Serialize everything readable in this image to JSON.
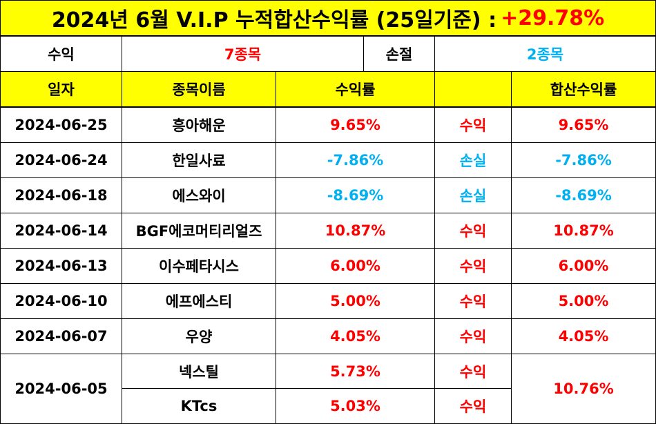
{
  "title": {
    "text": "2024년 6월 V.I.P 누적합산수익률 (25일기준) :",
    "total": "+29.78%"
  },
  "summary": {
    "profit_label": "수익",
    "profit_count": "7종목",
    "loss_label": "손절",
    "loss_count": "2종목"
  },
  "headers": {
    "date": "일자",
    "name": "종목이름",
    "rate": "수익률",
    "result": "",
    "total": "합산수익률"
  },
  "rows": [
    {
      "date": "2024-06-25",
      "name": "흥아해운",
      "rate": "9.65%",
      "result": "수익",
      "total": "9.65%"
    },
    {
      "date": "2024-06-24",
      "name": "한일사료",
      "rate": "-7.86%",
      "result": "손실",
      "total": "-7.86%"
    },
    {
      "date": "2024-06-18",
      "name": "에스와이",
      "rate": "-8.69%",
      "result": "손실",
      "total": "-8.69%"
    },
    {
      "date": "2024-06-14",
      "name": "BGF에코머티리얼즈",
      "rate": "10.87%",
      "result": "수익",
      "total": "10.87%"
    },
    {
      "date": "2024-06-13",
      "name": "이수페타시스",
      "rate": "6.00%",
      "result": "수익",
      "total": "6.00%"
    },
    {
      "date": "2024-06-10",
      "name": "에프에스티",
      "rate": "5.00%",
      "result": "수익",
      "total": "5.00%"
    },
    {
      "date": "2024-06-07",
      "name": "우양",
      "rate": "4.05%",
      "result": "수익",
      "total": "4.05%"
    }
  ],
  "merged_row": {
    "date": "2024-06-05",
    "total": "10.76%",
    "items": [
      {
        "name": "넥스틸",
        "rate": "5.73%",
        "result": "수익"
      },
      {
        "name": "KTcs",
        "rate": "5.03%",
        "result": "수익"
      }
    ]
  },
  "colors": {
    "header_bg": "#ffff00",
    "profit": "#ff0000",
    "loss": "#00b0f0",
    "border": "#000000"
  }
}
